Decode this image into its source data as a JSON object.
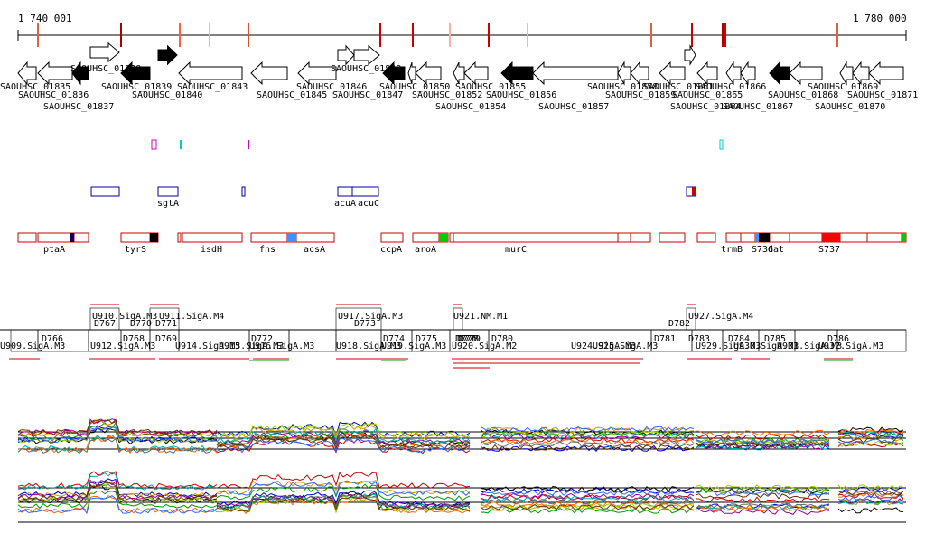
{
  "browser": {
    "coord_start": "1 740 001",
    "coord_end": "1 780 000"
  },
  "genes": {
    "top_row": [
      "SAOUHSC_01838",
      "SAOUHSC_01848"
    ],
    "mid_row": [
      "SAOUHSC_01835",
      "SAOUHSC_01836",
      "SAOUHSC_01839",
      "SAOUHSC_01840",
      "SAOUHSC_01843",
      "SAOUHSC_01845",
      "SAOUHSC_01846",
      "SAOUHSC_01847",
      "SAOUHSC_01850",
      "SAOUHSC_01852",
      "SAOUHSC_01855",
      "SAOUHSC_01856",
      "SAOUHSC_01858",
      "SAOUHSC_01859",
      "SAOUHSC_01861",
      "SAOUHSC_01865",
      "SAOUHSC_01866",
      "SAOUHSC_01868",
      "SAOUHSC_01869",
      "SAOUHSC_01871"
    ],
    "low_row": [
      "SAOUHSC_01837",
      "SAOUHSC_01854",
      "SAOUHSC_01857",
      "SAOUHSC_01864",
      "SAOUHSC_01867",
      "SAOUHSC_01870"
    ]
  },
  "features": {
    "blue_row": [
      "sgtA",
      "acuA",
      "acuC"
    ],
    "red_row": [
      "ptaA",
      "tyrS",
      "isdH",
      "fhs",
      "acsA",
      "ccpA",
      "aroA",
      "murC",
      "trmB",
      "S736",
      "dat",
      "S737"
    ]
  },
  "segments": {
    "top": [
      "U910.SigA.M3",
      "U911.SigA.M4",
      "U917.SigA.M3",
      "U921.NM.M1",
      "U927.SigA.M4"
    ],
    "ids_upper": [
      "D767",
      "D770",
      "D771",
      "D773",
      "D782"
    ],
    "ids_lower": [
      "D766",
      "D768",
      "D769",
      "D772",
      "D774",
      "D775",
      "D776",
      "D778",
      "D779",
      "D780",
      "D781",
      "D783",
      "D784",
      "D785",
      "D786"
    ],
    "bottom": [
      "U909.SigA.M3",
      "U912.SigA.M3",
      "U914.SigA.M3",
      "U915.SigA.M3",
      "U916.SigA.M3",
      "U918.SigA.M3",
      "U919.SigA.M3",
      "U920.SigA.M2",
      "U924.SigA.M3",
      "U925.SigA.M3",
      "U929.SigA.M3",
      "U930.SigA.M3",
      "U931.SigA.M3",
      "U932.SigA.M3"
    ]
  },
  "colors": {
    "forward": "#ffffff",
    "essential": "#000000",
    "feature": "#cc0000",
    "bsu_blue": "#000099",
    "tick": "#cc0000"
  }
}
